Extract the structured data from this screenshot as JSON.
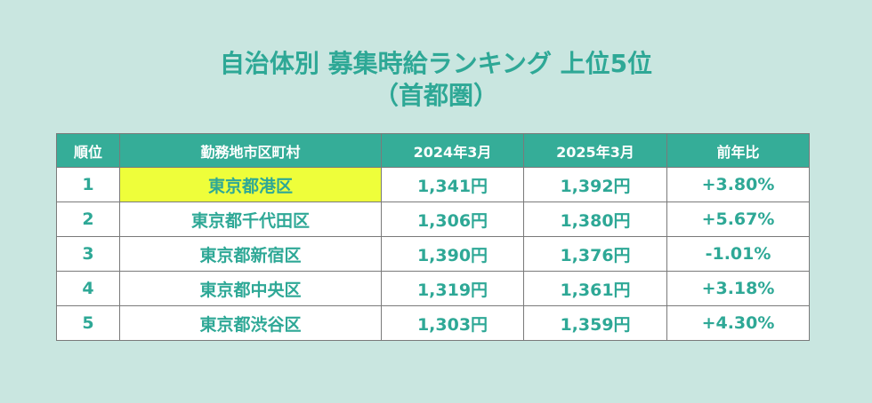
{
  "title": {
    "line1": "自治体別 募集時給ランキング 上位5位",
    "line2": "（首都圏）"
  },
  "colors": {
    "background": "#c9e6e0",
    "accent": "#2ea896",
    "header_fill": "#35ad98",
    "highlight": "#eefe3a"
  },
  "chart_data": {
    "type": "table",
    "title": "自治体別 募集時給ランキング 上位5位（首都圏）",
    "columns": [
      "順位",
      "勤務地市区町村",
      "2024年3月",
      "2025年3月",
      "前年比"
    ],
    "rows": [
      [
        "1",
        "東京都港区",
        "1,341円",
        "1,392円",
        "+3.80%"
      ],
      [
        "2",
        "東京都千代田区",
        "1,306円",
        "1,380円",
        "+5.67%"
      ],
      [
        "3",
        "東京都新宿区",
        "1,390円",
        "1,376円",
        "-1.01%"
      ],
      [
        "4",
        "東京都中央区",
        "1,319円",
        "1,361円",
        "+3.18%"
      ],
      [
        "5",
        "東京都渋谷区",
        "1,303円",
        "1,359円",
        "+4.30%"
      ]
    ],
    "highlighted_cell": {
      "row": 0,
      "column": 1
    }
  }
}
